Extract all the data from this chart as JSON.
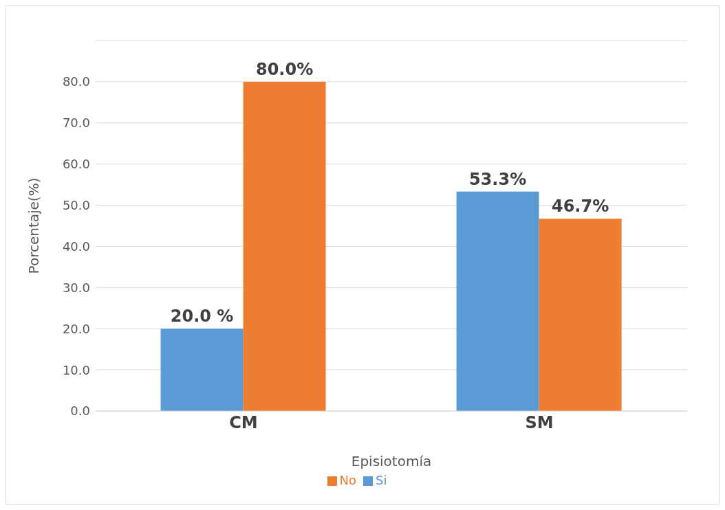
{
  "chart_data": {
    "type": "bar",
    "xlabel": "Episiotomía",
    "ylabel": "Porcentaje(%)",
    "categories": [
      "CM",
      "SM"
    ],
    "series": [
      {
        "name": "Si",
        "color": "#5b9bd5",
        "values": [
          20.0,
          53.3
        ],
        "value_labels": [
          "20.0 %",
          "53.3%"
        ]
      },
      {
        "name": "No",
        "color": "#ed7d31",
        "values": [
          80.0,
          46.7
        ],
        "value_labels": [
          "80.0%",
          "46.7%"
        ]
      }
    ],
    "ylim": [
      0,
      90
    ],
    "yticks": [
      {
        "value": 0,
        "label": "0.0"
      },
      {
        "value": 10,
        "label": "10.0"
      },
      {
        "value": 20,
        "label": "20.0"
      },
      {
        "value": 30,
        "label": "30.0"
      },
      {
        "value": 40,
        "label": "40.0"
      },
      {
        "value": 50,
        "label": "50.0"
      },
      {
        "value": 60,
        "label": "60.0"
      },
      {
        "value": 70,
        "label": "70.0"
      },
      {
        "value": 80,
        "label": "80.0"
      },
      {
        "value": 90,
        "label": null
      }
    ],
    "grid": "y",
    "legend": "bottom"
  }
}
